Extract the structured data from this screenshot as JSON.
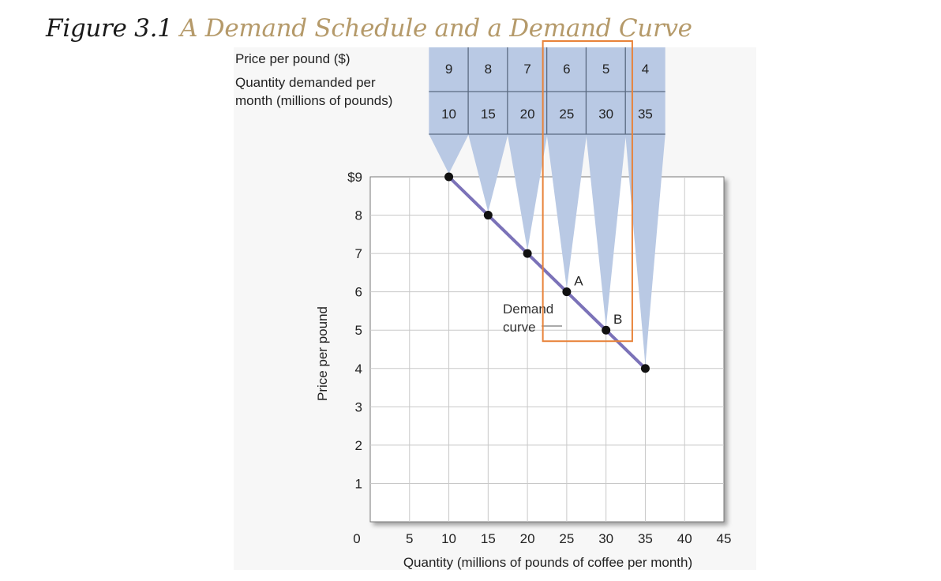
{
  "figure": {
    "number": "Figure 3.1",
    "title": "A Demand Schedule and a Demand Curve"
  },
  "schedule": {
    "price_label": "Price per pound ($)",
    "quantity_label_line1": "Quantity demanded per",
    "quantity_label_line2": "month (millions of pounds)"
  },
  "colors": {
    "band_fill": "#b9c9e4",
    "curve": "#7b72b8",
    "highlight_box": "#e8833a",
    "title_accent": "#b59a6a"
  },
  "chart_data": {
    "type": "line",
    "title": "A Demand Schedule and a Demand Curve",
    "xlabel": "Quantity (millions of pounds of coffee per month)",
    "ylabel": "Price per pound",
    "xlim": [
      0,
      45
    ],
    "ylim": [
      0,
      9
    ],
    "x_ticks": [
      "0",
      "5",
      "10",
      "15",
      "20",
      "25",
      "30",
      "35",
      "40",
      "45"
    ],
    "y_ticks": [
      "0",
      "1",
      "2",
      "3",
      "4",
      "5",
      "6",
      "7",
      "8",
      "$9"
    ],
    "grid": true,
    "series": [
      {
        "name": "Demand curve",
        "x": [
          10,
          15,
          20,
          25,
          30,
          35
        ],
        "y": [
          9,
          8,
          7,
          6,
          5,
          4
        ]
      }
    ],
    "schedule_prices": [
      "9",
      "8",
      "7",
      "6",
      "5",
      "4"
    ],
    "schedule_quantities": [
      "10",
      "15",
      "20",
      "25",
      "30",
      "35"
    ],
    "point_labels": [
      {
        "label": "A",
        "x": 25,
        "y": 6
      },
      {
        "label": "B",
        "x": 30,
        "y": 5
      }
    ],
    "curve_label_line1": "Demand",
    "curve_label_line2": "curve",
    "highlighted_columns": [
      25,
      30
    ]
  }
}
